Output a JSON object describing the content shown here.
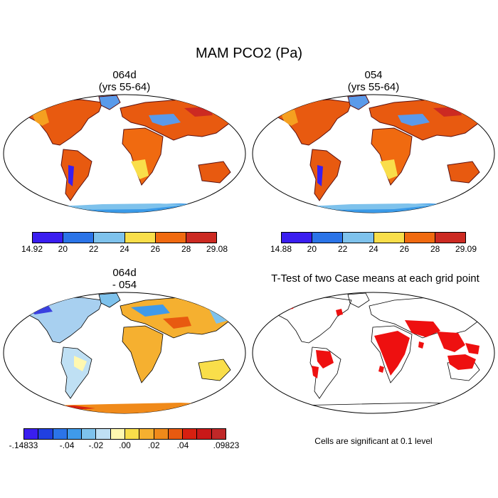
{
  "figure": {
    "title": "MAM PCO2 (Pa)"
  },
  "panels": {
    "case1": {
      "line1": "064d",
      "line2": "(yrs 55-64)"
    },
    "case2": {
      "line1": "054",
      "line2": "(yrs 55-64)"
    },
    "diff": {
      "line1": "064d",
      "line2": "- 054"
    },
    "ttest": {
      "line1": "T-Test of two Case means at each grid point",
      "note": "Cells are significant at 0.1 level"
    }
  },
  "colorbars": {
    "case1": {
      "labels": [
        "14.92",
        "20",
        "22",
        "24",
        "26",
        "28",
        "29.08"
      ],
      "colors": [
        "#3a1ef0",
        "#2b74e8",
        "#7ec2ec",
        "#f9de4a",
        "#f06a10",
        "#cc2a22"
      ]
    },
    "case2": {
      "labels": [
        "14.88",
        "20",
        "22",
        "24",
        "26",
        "28",
        "29.09"
      ],
      "colors": [
        "#3a1ef0",
        "#2b74e8",
        "#7ec2ec",
        "#f9de4a",
        "#f06a10",
        "#cc2a22"
      ]
    },
    "diff": {
      "labels": [
        "-.14833",
        "-.04",
        "-.02",
        ".00",
        ".02",
        ".04",
        ".09823"
      ],
      "label_positions": [
        0,
        3,
        5,
        7,
        9,
        11,
        14
      ],
      "colors": [
        "#3a1ef0",
        "#2040e0",
        "#2b74e8",
        "#3f9aea",
        "#7ec2ec",
        "#bfe0f4",
        "#fff8b0",
        "#f9de4a",
        "#f5b030",
        "#f08a1a",
        "#e85a10",
        "#d82010",
        "#c81818",
        "#c02828"
      ]
    }
  },
  "map_colors": {
    "ocean": "#ffffff",
    "land_hi": "#e85a10",
    "land_mid": "#f5a020",
    "land_low": "#5a9aea",
    "land_max": "#cc2a22",
    "diff_warm": "#f5b030",
    "diff_cool": "#a8d0f0",
    "signif": "#ee1010"
  }
}
